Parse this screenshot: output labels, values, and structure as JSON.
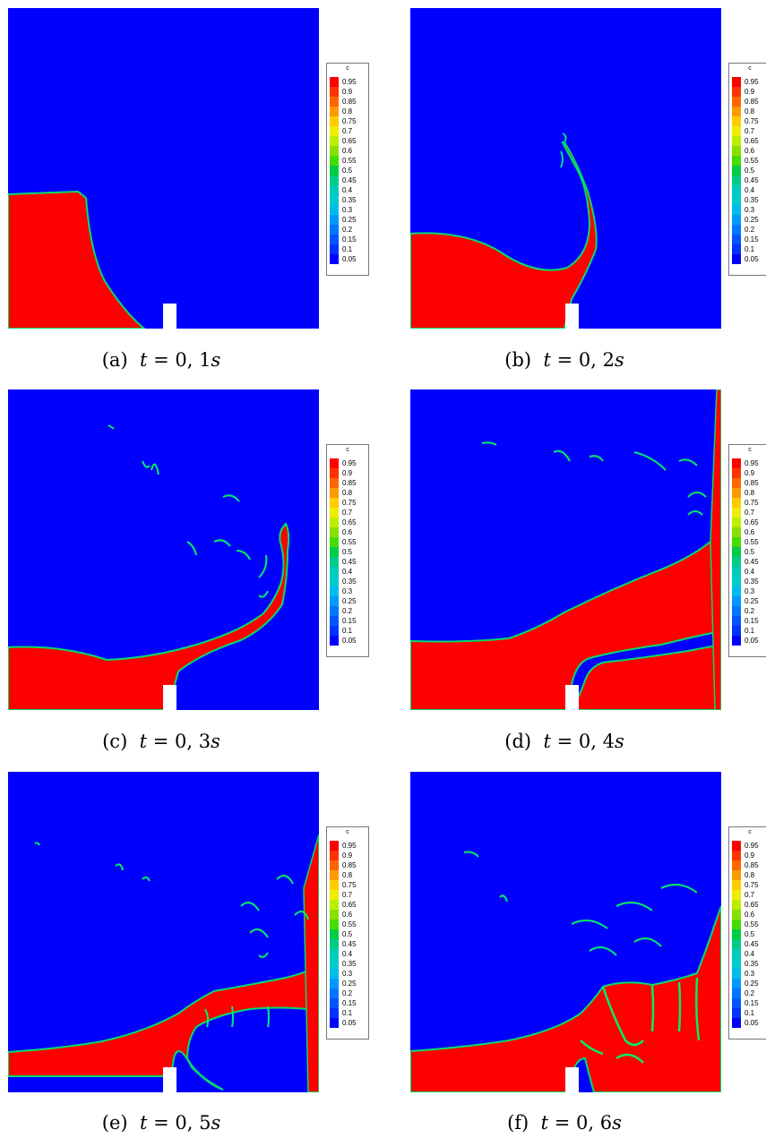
{
  "colormap": {
    "title": "c",
    "levels": [
      "0.95",
      "0.9",
      "0.85",
      "0.8",
      "0.75",
      "0.7",
      "0.65",
      "0.6",
      "0.55",
      "0.5",
      "0.45",
      "0.4",
      "0.35",
      "0.3",
      "0.25",
      "0.2",
      "0.15",
      "0.1",
      "0.05"
    ],
    "colors": [
      "#ff0000",
      "#ff3300",
      "#ff6600",
      "#ff9900",
      "#ffcc00",
      "#eeee00",
      "#bbee00",
      "#88e000",
      "#44dd00",
      "#00cc44",
      "#00cc88",
      "#00ccbb",
      "#00cccc",
      "#00bbee",
      "#0099ff",
      "#0077ff",
      "#0055ff",
      "#0033ff",
      "#0000ff"
    ]
  },
  "fluid_color": "#ff0000",
  "background_color": "#0000ff",
  "obstacle_color": "#ffffff",
  "panels": [
    {
      "tag": "(a)",
      "lhs": "t",
      "eq": " = ",
      "value": "0, 1",
      "unit": "s"
    },
    {
      "tag": "(b)",
      "lhs": "t",
      "eq": " = ",
      "value": "0, 2",
      "unit": "s"
    },
    {
      "tag": "(c)",
      "lhs": "t",
      "eq": " = ",
      "value": "0, 3",
      "unit": "s"
    },
    {
      "tag": "(d)",
      "lhs": "t",
      "eq": " = ",
      "value": "0, 4",
      "unit": "s"
    },
    {
      "tag": "(e)",
      "lhs": "t",
      "eq": " = ",
      "value": "0, 5",
      "unit": "s"
    },
    {
      "tag": "(f)",
      "lhs": "t",
      "eq": " = ",
      "value": "0, 6",
      "unit": "s"
    }
  ]
}
